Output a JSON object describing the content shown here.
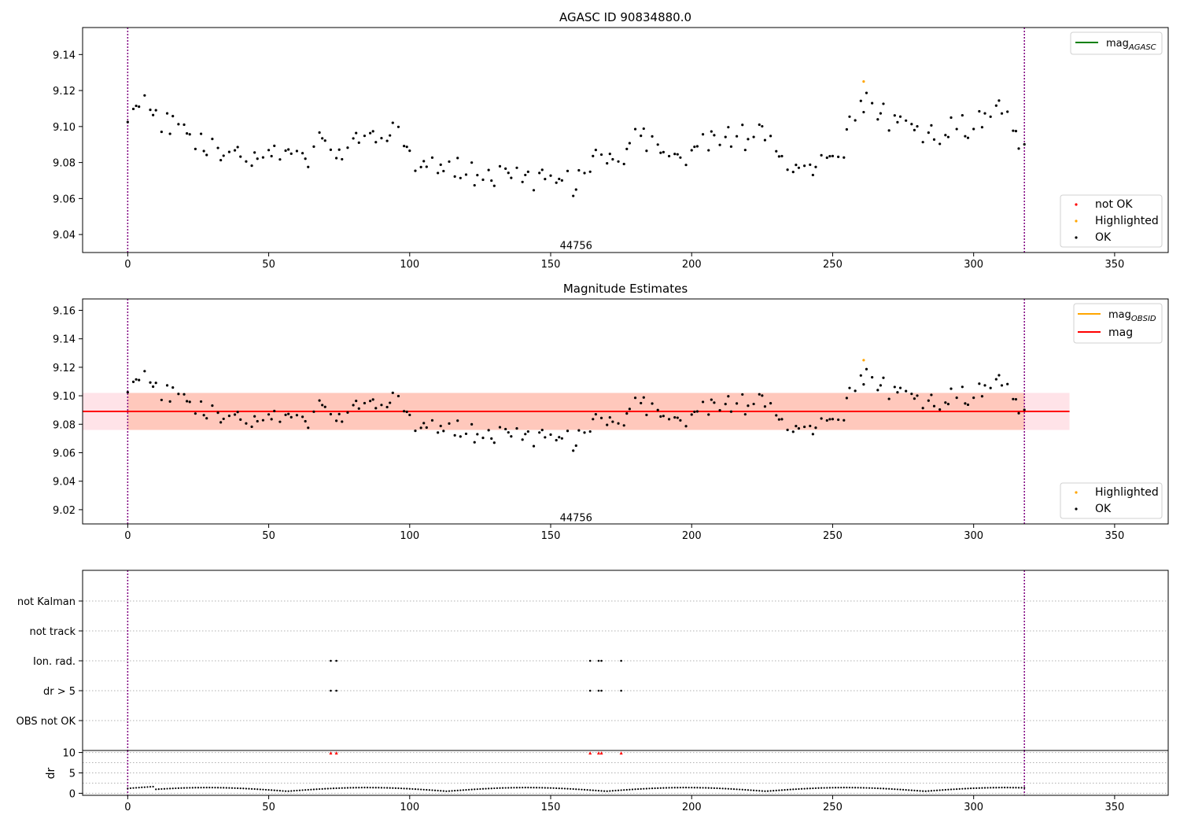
{
  "chart_data": [
    {
      "type": "scatter",
      "title": "AGASC ID 90834880.0",
      "xlim": [
        -16,
        369
      ],
      "ylim": [
        9.03,
        9.155
      ],
      "xticks": [
        0,
        50,
        100,
        150,
        200,
        250,
        300,
        350
      ],
      "yticks": [
        9.04,
        9.06,
        9.08,
        9.1,
        9.12,
        9.14
      ],
      "vlines": [
        0,
        318
      ],
      "annotation": {
        "text": "44756",
        "x": 159,
        "y": 9.032
      },
      "legend_upper": {
        "location": "upper right",
        "entries": [
          {
            "label": "mag",
            "sub": "AGASC",
            "color": "#008000"
          }
        ]
      },
      "legend_lower": {
        "location": "lower right",
        "entries": [
          {
            "label": "not OK",
            "color": "#ff0000"
          },
          {
            "label": "Highlighted",
            "color": "#ffa500"
          },
          {
            "label": "OK",
            "color": "#000000"
          }
        ]
      },
      "highlighted": [
        {
          "x": 261,
          "y": 9.125
        }
      ]
    },
    {
      "type": "scatter",
      "title": "Magnitude Estimates",
      "xlim": [
        -16,
        369
      ],
      "ylim": [
        9.01,
        9.168
      ],
      "xticks": [
        0,
        50,
        100,
        150,
        200,
        250,
        300,
        350
      ],
      "yticks": [
        9.02,
        9.04,
        9.06,
        9.08,
        9.1,
        9.12,
        9.14,
        9.16
      ],
      "vlines": [
        0,
        318
      ],
      "mag": 9.089,
      "band": [
        9.076,
        9.102
      ],
      "band_x": [
        -16,
        334
      ],
      "annotation": {
        "text": "44756",
        "x": 159,
        "y": 9.012
      },
      "legend_upper": {
        "location": "upper right",
        "entries": [
          {
            "label": "mag",
            "sub": "OBSID",
            "color": "#ffa500"
          },
          {
            "label": "mag",
            "sub": "",
            "color": "#ff0000"
          }
        ]
      },
      "legend_lower": {
        "location": "lower right",
        "entries": [
          {
            "label": "Highlighted",
            "color": "#ffa500"
          },
          {
            "label": "OK",
            "color": "#000000"
          }
        ]
      },
      "highlighted": [
        {
          "x": 261,
          "y": 9.125
        }
      ]
    },
    {
      "type": "scatter",
      "xlim": [
        -16,
        369
      ],
      "categories": [
        "not Kalman",
        "not track",
        "Ion. rad.",
        "dr > 5",
        "OBS not OK"
      ],
      "flag_points": {
        "Ion. rad.": [
          72,
          74,
          164,
          167,
          168,
          175
        ],
        "dr > 5": [
          72,
          74,
          164,
          167,
          168,
          175
        ]
      },
      "vlines": [
        0,
        318
      ]
    },
    {
      "type": "scatter",
      "xlim": [
        -16,
        369
      ],
      "ylim": [
        -0.5,
        10.5
      ],
      "ylabel": "dr",
      "yticks": [
        0,
        5,
        10
      ],
      "xticks": [
        0,
        50,
        100,
        150,
        200,
        250,
        300,
        350
      ],
      "clipped_points": [
        72,
        74,
        164,
        167,
        168,
        175
      ],
      "vlines": [
        0,
        318
      ]
    }
  ]
}
